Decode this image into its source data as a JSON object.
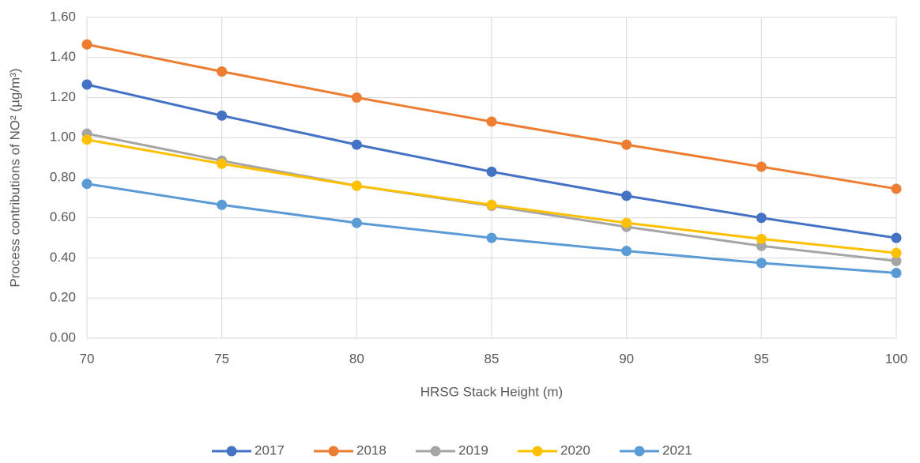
{
  "chart_data": {
    "type": "line",
    "xlabel": "HRSG Stack Height (m)",
    "ylabel": "Process contributions of NO² (µg/m³)",
    "x": [
      70,
      75,
      80,
      85,
      90,
      95,
      100
    ],
    "xlim": [
      70,
      100
    ],
    "xticks": [
      70,
      75,
      80,
      85,
      90,
      95,
      100
    ],
    "ylim": [
      0,
      1.6
    ],
    "yticks": [
      {
        "value": 0,
        "label": "0.00"
      },
      {
        "value": 0.2,
        "label": "0.20"
      },
      {
        "value": 0.4,
        "label": "0.40"
      },
      {
        "value": 0.6,
        "label": "0.60"
      },
      {
        "value": 0.8,
        "label": "0.80"
      },
      {
        "value": 1.0,
        "label": "1.00"
      },
      {
        "value": 1.2,
        "label": "1.20"
      },
      {
        "value": 1.4,
        "label": "1.40"
      },
      {
        "value": 1.6,
        "label": "1.60"
      }
    ],
    "grid": true,
    "legend": "bottom",
    "series": [
      {
        "name": "2017",
        "color": "#4472c4",
        "values": [
          1.265,
          1.11,
          0.965,
          0.83,
          0.71,
          0.6,
          0.5
        ]
      },
      {
        "name": "2018",
        "color": "#ed7d31",
        "values": [
          1.465,
          1.33,
          1.2,
          1.08,
          0.965,
          0.855,
          0.745
        ]
      },
      {
        "name": "2019",
        "color": "#a5a5a5",
        "values": [
          1.02,
          0.885,
          0.76,
          0.66,
          0.555,
          0.46,
          0.385
        ]
      },
      {
        "name": "2020",
        "color": "#ffc000",
        "values": [
          0.99,
          0.87,
          0.76,
          0.665,
          0.575,
          0.495,
          0.425
        ]
      },
      {
        "name": "2021",
        "color": "#5b9bd5",
        "values": [
          0.77,
          0.665,
          0.575,
          0.5,
          0.435,
          0.375,
          0.325
        ]
      }
    ]
  }
}
